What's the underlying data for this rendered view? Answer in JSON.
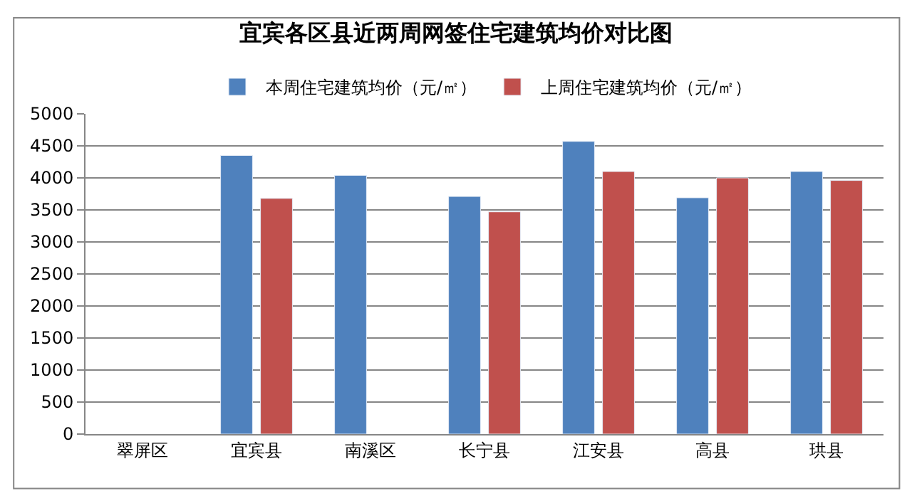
{
  "chart_data": {
    "type": "bar",
    "title": "宜宾各区县近两周网签住宅建筑均价对比图",
    "categories": [
      "翠屏区",
      "宜宾县",
      "南溪区",
      "长宁县",
      "江安县",
      "高县",
      "珙县"
    ],
    "series": [
      {
        "name": "本周住宅建筑均价（元/㎡）",
        "color": "#4f81bd",
        "values": [
          null,
          4350,
          4040,
          3710,
          4570,
          3690,
          4100
        ]
      },
      {
        "name": "上周住宅建筑均价（元/㎡）",
        "color": "#c0504d",
        "values": [
          null,
          3680,
          null,
          3470,
          4100,
          4000,
          3960
        ]
      }
    ],
    "ylim": [
      0,
      5000
    ],
    "yticks": [
      0,
      500,
      1000,
      1500,
      2000,
      2500,
      3000,
      3500,
      4000,
      4500,
      5000
    ],
    "grid": "y",
    "legend": "top"
  }
}
